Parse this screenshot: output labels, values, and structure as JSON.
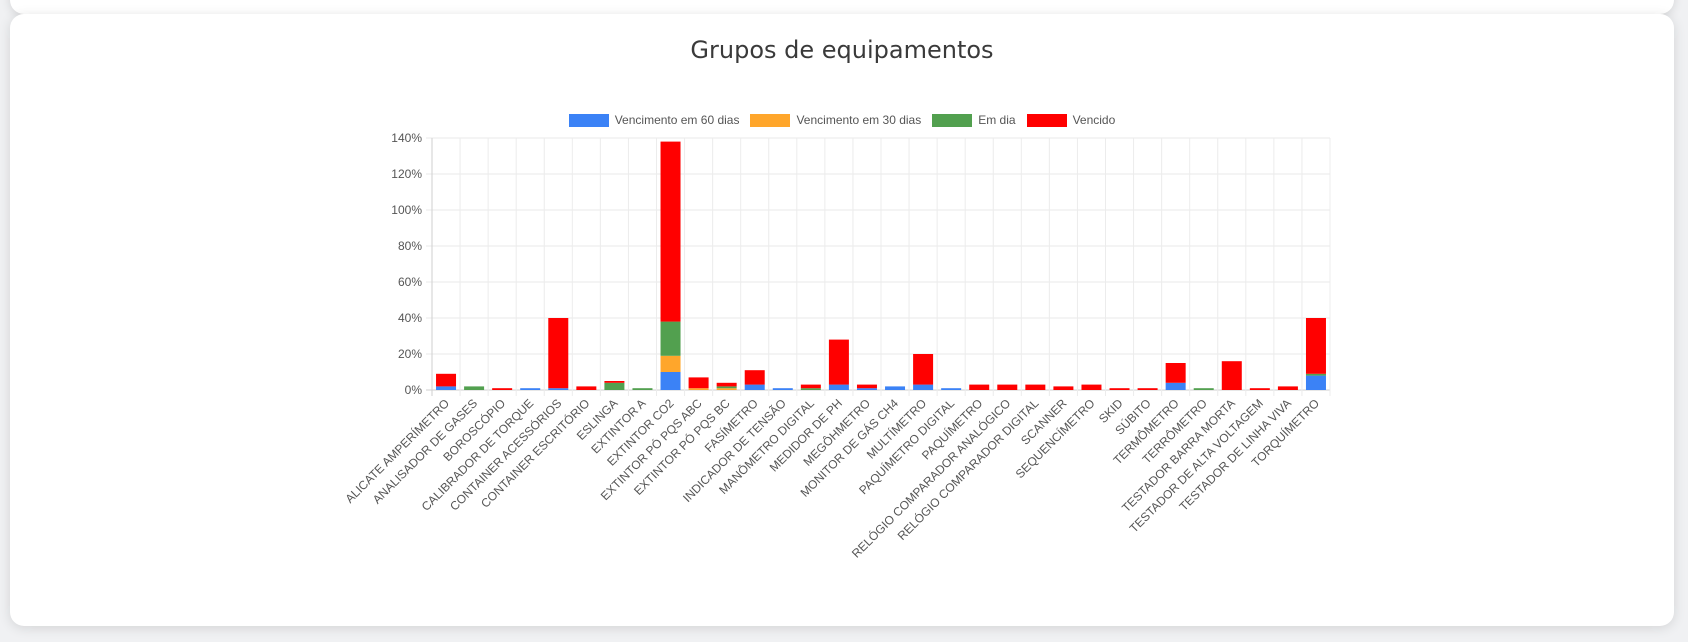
{
  "colors": {
    "vencimento_60": "#3b82f6",
    "vencimento_30": "#ffa62b",
    "em_dia": "#52a04f",
    "vencido": "#ff0000"
  },
  "chart_data": {
    "type": "bar",
    "stacked": true,
    "title": "Grupos de equipamentos",
    "xlabel": "",
    "ylabel": "",
    "ylim": [
      0,
      140
    ],
    "y_ticks": [
      "0%",
      "20%",
      "40%",
      "60%",
      "80%",
      "100%",
      "120%",
      "140%"
    ],
    "grid": true,
    "legend_position": "top",
    "categories": [
      "ALICATE AMPERÍMETRO",
      "ANALISADOR DE GASES",
      "BOROSCÓPIO",
      "CALIBRADOR DE TORQUE",
      "CONTAINER ACESSÓRIOS",
      "CONTAINER ESCRITÓRIO",
      "ESLINGA",
      "EXTINTOR A",
      "EXTINTOR CO2",
      "EXTINTOR PÓ PQS ABC",
      "EXTINTOR PÓ PQS BC",
      "FASÍMETRO",
      "INDICADOR DE TENSÃO",
      "MANÔMETRO DIGITAL",
      "MEDIDOR DE PH",
      "MEGÔHMETRO",
      "MONITOR DE GÁS CH4",
      "MULTÍMETRO",
      "PAQUÍMETRO DIGITAL",
      "PAQUÍMETRO",
      "RELÓGIO COMPARADOR ANALÓGICO",
      "RELÓGIO COMPARADOR DIGITAL",
      "SCANNER",
      "SEQUENCÍMETRO",
      "SKID",
      "SÚBITO",
      "TERMÔMETRO",
      "TERRÔMETRO",
      "TESTADOR BARRA MORTA",
      "TESTADOR DE ALTA VOLTAGEM",
      "TESTADOR DE LINHA VIVA",
      "TORQUÍMETRO"
    ],
    "series": [
      {
        "name": "Vencimento em 60 dias",
        "color_key": "vencimento_60",
        "values": [
          2,
          0,
          0,
          1,
          1,
          0,
          0,
          0,
          10,
          0,
          0,
          3,
          1,
          0,
          3,
          1,
          2,
          3,
          1,
          0,
          0,
          0,
          0,
          0,
          0,
          0,
          4,
          0,
          0,
          0,
          0,
          8
        ]
      },
      {
        "name": "Vencimento em 30 dias",
        "color_key": "vencimento_30",
        "values": [
          0,
          0,
          0,
          0,
          0,
          0,
          0,
          0,
          9,
          1,
          1,
          0,
          0,
          0,
          0,
          0,
          0,
          0,
          0,
          0,
          0,
          0,
          0,
          0,
          0,
          0,
          0,
          0,
          0,
          0,
          0,
          0
        ]
      },
      {
        "name": "Em dia",
        "color_key": "em_dia",
        "values": [
          0,
          2,
          0,
          0,
          0,
          0,
          4,
          1,
          19,
          0,
          1,
          0,
          0,
          1,
          0,
          0,
          0,
          0,
          0,
          0,
          0,
          0,
          0,
          0,
          0,
          0,
          0,
          1,
          0,
          0,
          0,
          1
        ]
      },
      {
        "name": "Vencido",
        "color_key": "vencido",
        "values": [
          7,
          0,
          1,
          0,
          39,
          2,
          1,
          0,
          100,
          6,
          2,
          8,
          0,
          2,
          25,
          2,
          0,
          17,
          0,
          3,
          3,
          3,
          2,
          3,
          1,
          1,
          11,
          0,
          16,
          1,
          2,
          31
        ]
      }
    ]
  }
}
